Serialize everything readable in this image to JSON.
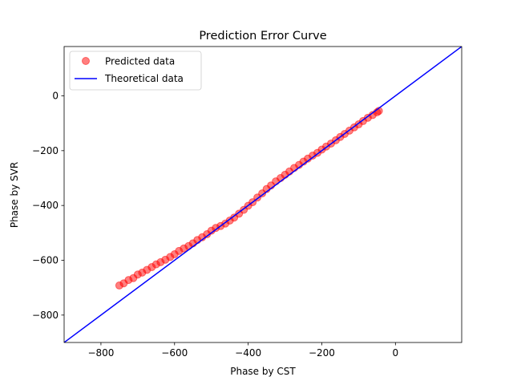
{
  "chart_data": {
    "type": "scatter",
    "title": "Prediction Error Curve",
    "xlabel": "Phase by CST",
    "ylabel": "Phase by SVR",
    "xlim": [
      -900,
      180
    ],
    "ylim": [
      -900,
      180
    ],
    "xticks": [
      -800,
      -600,
      -400,
      -200,
      0
    ],
    "xtick_labels": [
      "−800",
      "−600",
      "−400",
      "−200",
      "0"
    ],
    "yticks": [
      -800,
      -600,
      -400,
      -200,
      0
    ],
    "ytick_labels": [
      "−800",
      "−600",
      "−400",
      "−200",
      "0"
    ],
    "grid": false,
    "legend_position": "top-left",
    "legend": [
      "Predicted data",
      "Theoretical data"
    ],
    "series": [
      {
        "name": "Predicted data",
        "kind": "scatter",
        "color": "#ff0000",
        "opacity": 0.5,
        "x": [
          -750,
          -738,
          -725,
          -712,
          -700,
          -688,
          -675,
          -662,
          -650,
          -638,
          -625,
          -612,
          -600,
          -588,
          -575,
          -562,
          -550,
          -538,
          -525,
          -512,
          -500,
          -488,
          -475,
          -462,
          -450,
          -438,
          -425,
          -412,
          -400,
          -388,
          -375,
          -362,
          -350,
          -338,
          -325,
          -312,
          -300,
          -288,
          -275,
          -262,
          -250,
          -238,
          -225,
          -212,
          -200,
          -188,
          -175,
          -162,
          -150,
          -138,
          -125,
          -112,
          -100,
          -88,
          -75,
          -62,
          -50,
          -45
        ],
        "y": [
          -692,
          -684,
          -672,
          -665,
          -652,
          -645,
          -635,
          -625,
          -615,
          -607,
          -598,
          -588,
          -578,
          -566,
          -557,
          -548,
          -538,
          -526,
          -516,
          -505,
          -492,
          -482,
          -475,
          -466,
          -455,
          -444,
          -430,
          -416,
          -401,
          -388,
          -371,
          -356,
          -340,
          -327,
          -312,
          -300,
          -288,
          -276,
          -263,
          -252,
          -240,
          -229,
          -218,
          -208,
          -196,
          -185,
          -174,
          -162,
          -150,
          -139,
          -127,
          -115,
          -104,
          -92,
          -80,
          -70,
          -60,
          -55
        ]
      },
      {
        "name": "Theoretical data",
        "kind": "line",
        "color": "#0000ff",
        "x": [
          -900,
          180
        ],
        "y": [
          -900,
          180
        ]
      }
    ]
  }
}
